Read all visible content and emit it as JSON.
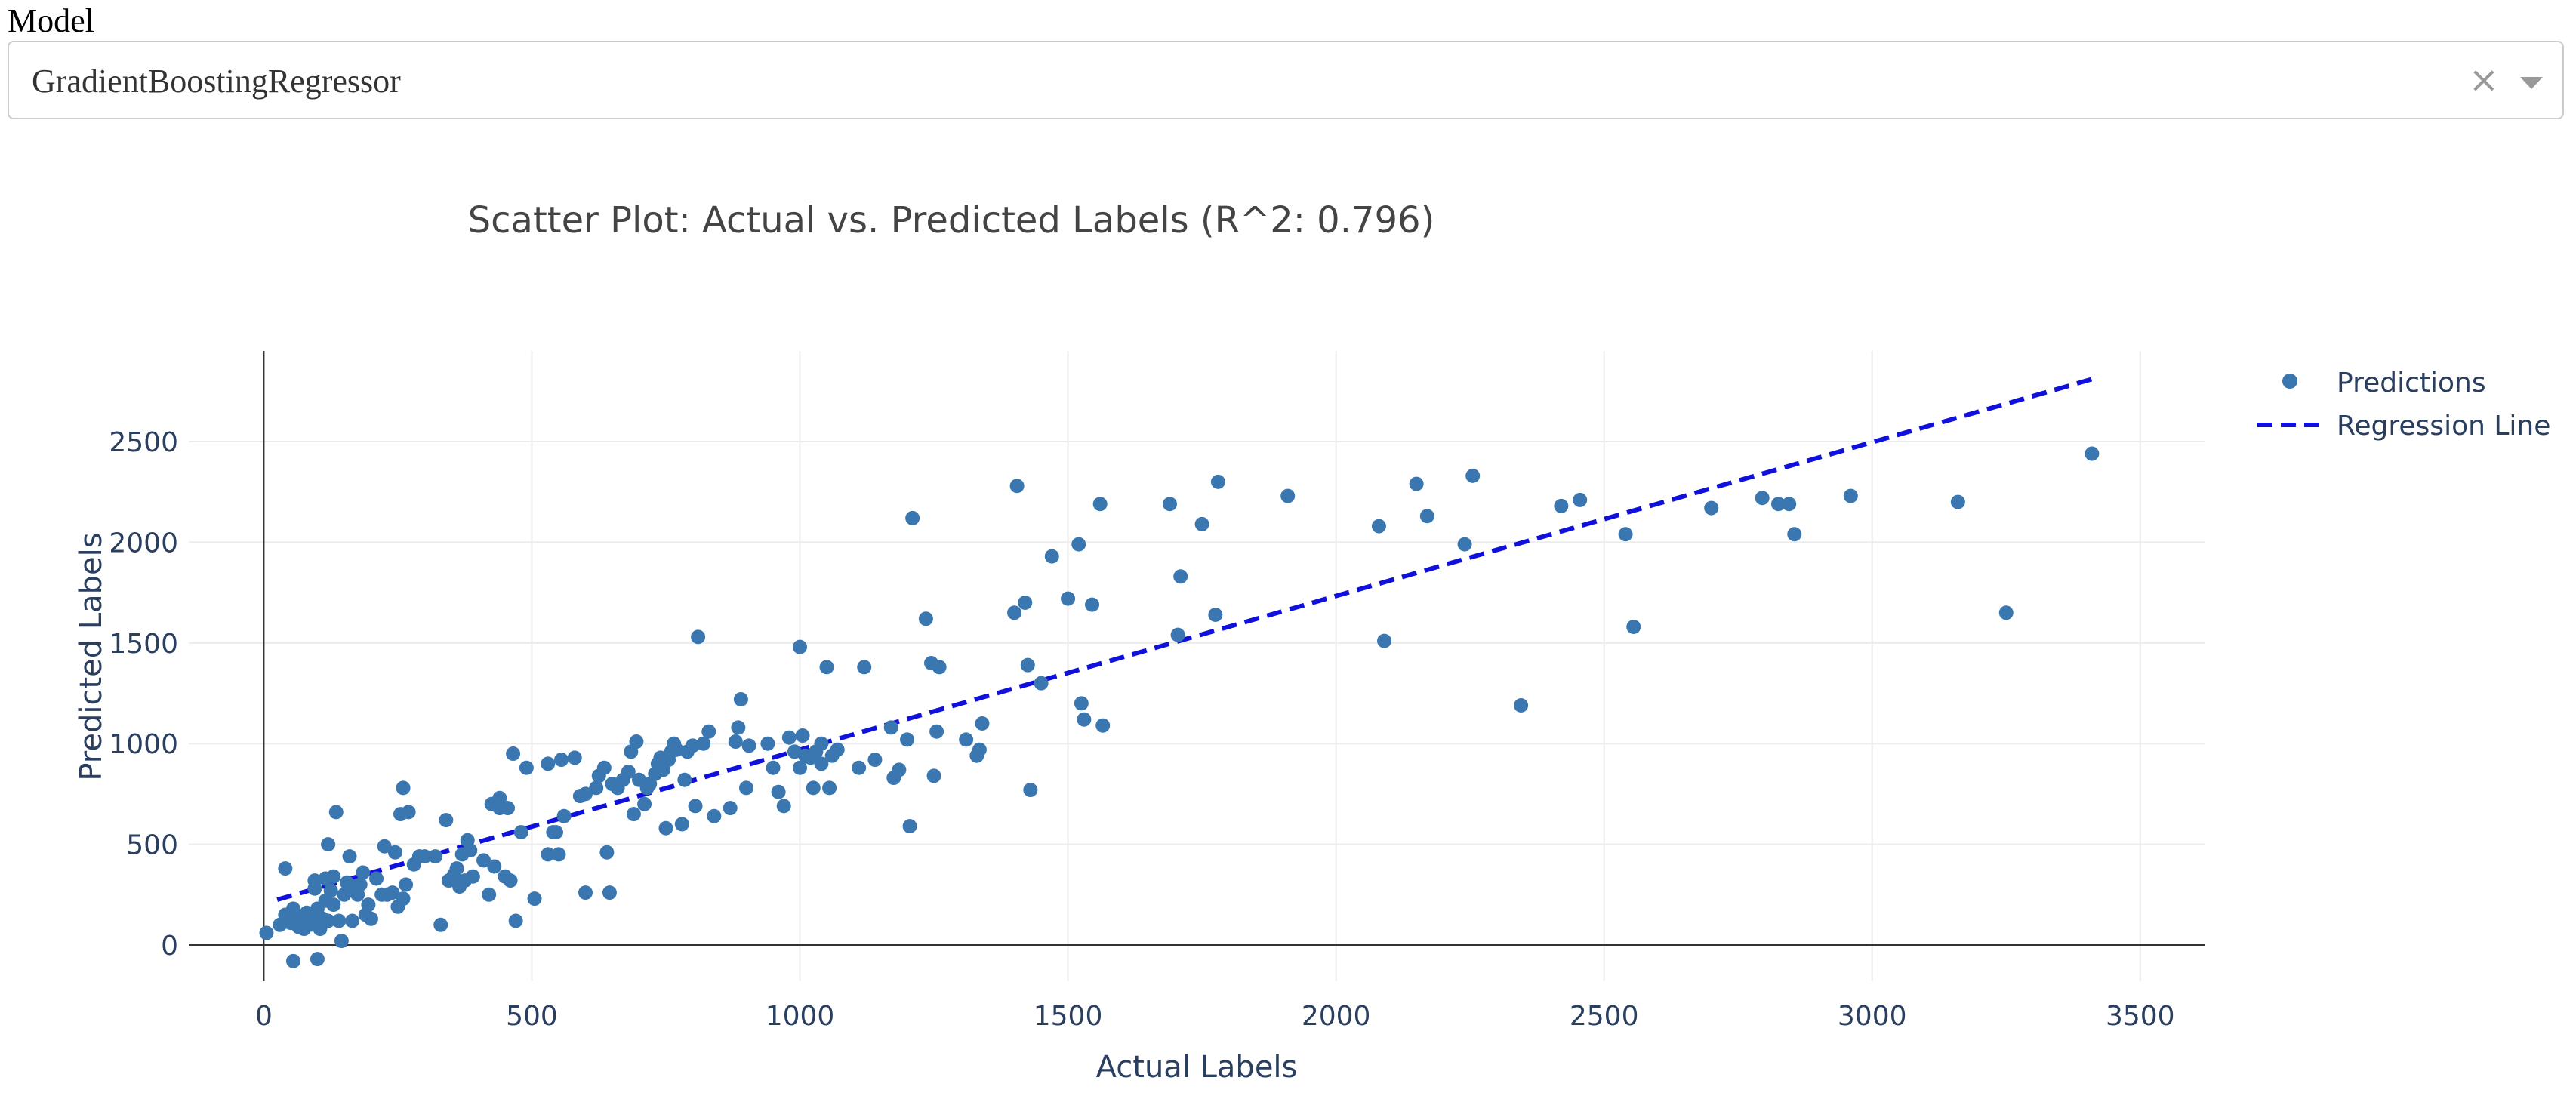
{
  "model_selector": {
    "label": "Model",
    "value": "GradientBoostingRegressor",
    "clear_glyph": "×"
  },
  "chart_data": {
    "type": "scatter",
    "title": "Scatter Plot: Actual vs. Predicted Labels  (R^2: 0.796)",
    "xlabel": "Actual Labels",
    "ylabel": "Predicted Labels",
    "xlim": [
      -140,
      3620
    ],
    "ylim": [
      -180,
      2950
    ],
    "xticks": [
      0,
      500,
      1000,
      1500,
      2000,
      2500,
      3000,
      3500
    ],
    "yticks": [
      0,
      500,
      1000,
      1500,
      2000,
      2500
    ],
    "grid": true,
    "legend_position": "top-right",
    "colors": {
      "points": "#3a77b0",
      "regression": "#1010dd",
      "grid": "#ebebeb",
      "axis": "#333333",
      "text": "#2a3f5f"
    },
    "regression_line": {
      "name": "Regression Line",
      "style": "dashed",
      "x": [
        25,
        3410
      ],
      "y": [
        225,
        2810
      ]
    },
    "series": [
      {
        "name": "Predictions",
        "points": [
          [
            5,
            60
          ],
          [
            30,
            100
          ],
          [
            40,
            150
          ],
          [
            40,
            380
          ],
          [
            50,
            110
          ],
          [
            55,
            180
          ],
          [
            55,
            -80
          ],
          [
            60,
            120
          ],
          [
            65,
            90
          ],
          [
            70,
            140
          ],
          [
            75,
            80
          ],
          [
            80,
            160
          ],
          [
            85,
            100
          ],
          [
            90,
            130
          ],
          [
            95,
            280
          ],
          [
            95,
            320
          ],
          [
            100,
            -70
          ],
          [
            100,
            180
          ],
          [
            105,
            80
          ],
          [
            110,
            130
          ],
          [
            115,
            220
          ],
          [
            115,
            330
          ],
          [
            120,
            500
          ],
          [
            120,
            120
          ],
          [
            125,
            270
          ],
          [
            130,
            200
          ],
          [
            130,
            340
          ],
          [
            135,
            660
          ],
          [
            140,
            120
          ],
          [
            145,
            20
          ],
          [
            150,
            250
          ],
          [
            155,
            310
          ],
          [
            160,
            440
          ],
          [
            165,
            120
          ],
          [
            170,
            290
          ],
          [
            175,
            250
          ],
          [
            180,
            300
          ],
          [
            185,
            360
          ],
          [
            190,
            150
          ],
          [
            195,
            200
          ],
          [
            200,
            130
          ],
          [
            210,
            330
          ],
          [
            220,
            250
          ],
          [
            225,
            490
          ],
          [
            230,
            250
          ],
          [
            240,
            260
          ],
          [
            245,
            460
          ],
          [
            250,
            190
          ],
          [
            255,
            650
          ],
          [
            260,
            780
          ],
          [
            260,
            230
          ],
          [
            265,
            300
          ],
          [
            270,
            660
          ],
          [
            280,
            400
          ],
          [
            290,
            440
          ],
          [
            300,
            440
          ],
          [
            320,
            440
          ],
          [
            330,
            100
          ],
          [
            340,
            620
          ],
          [
            345,
            320
          ],
          [
            355,
            350
          ],
          [
            360,
            380
          ],
          [
            365,
            290
          ],
          [
            370,
            450
          ],
          [
            375,
            320
          ],
          [
            380,
            520
          ],
          [
            385,
            470
          ],
          [
            390,
            340
          ],
          [
            410,
            420
          ],
          [
            420,
            250
          ],
          [
            425,
            700
          ],
          [
            430,
            390
          ],
          [
            440,
            680
          ],
          [
            440,
            730
          ],
          [
            450,
            340
          ],
          [
            455,
            680
          ],
          [
            460,
            320
          ],
          [
            465,
            950
          ],
          [
            470,
            120
          ],
          [
            480,
            560
          ],
          [
            490,
            880
          ],
          [
            505,
            230
          ],
          [
            530,
            900
          ],
          [
            530,
            450
          ],
          [
            540,
            560
          ],
          [
            545,
            560
          ],
          [
            550,
            450
          ],
          [
            555,
            920
          ],
          [
            560,
            640
          ],
          [
            580,
            930
          ],
          [
            590,
            740
          ],
          [
            600,
            260
          ],
          [
            600,
            750
          ],
          [
            620,
            780
          ],
          [
            625,
            840
          ],
          [
            635,
            880
          ],
          [
            640,
            460
          ],
          [
            645,
            260
          ],
          [
            650,
            800
          ],
          [
            660,
            780
          ],
          [
            670,
            820
          ],
          [
            680,
            860
          ],
          [
            685,
            960
          ],
          [
            690,
            650
          ],
          [
            695,
            1010
          ],
          [
            700,
            820
          ],
          [
            710,
            700
          ],
          [
            715,
            780
          ],
          [
            720,
            800
          ],
          [
            730,
            850
          ],
          [
            735,
            900
          ],
          [
            740,
            930
          ],
          [
            745,
            870
          ],
          [
            750,
            580
          ],
          [
            755,
            920
          ],
          [
            760,
            960
          ],
          [
            765,
            1000
          ],
          [
            770,
            970
          ],
          [
            780,
            600
          ],
          [
            785,
            820
          ],
          [
            790,
            960
          ],
          [
            800,
            990
          ],
          [
            805,
            690
          ],
          [
            810,
            1530
          ],
          [
            820,
            1000
          ],
          [
            830,
            1060
          ],
          [
            840,
            640
          ],
          [
            870,
            680
          ],
          [
            880,
            1010
          ],
          [
            885,
            1080
          ],
          [
            890,
            1220
          ],
          [
            900,
            780
          ],
          [
            905,
            990
          ],
          [
            940,
            1000
          ],
          [
            950,
            880
          ],
          [
            960,
            760
          ],
          [
            970,
            690
          ],
          [
            980,
            1030
          ],
          [
            990,
            960
          ],
          [
            1000,
            1480
          ],
          [
            1000,
            880
          ],
          [
            1005,
            1040
          ],
          [
            1010,
            940
          ],
          [
            1020,
            930
          ],
          [
            1025,
            780
          ],
          [
            1030,
            960
          ],
          [
            1040,
            900
          ],
          [
            1040,
            1000
          ],
          [
            1050,
            1380
          ],
          [
            1055,
            780
          ],
          [
            1060,
            940
          ],
          [
            1070,
            970
          ],
          [
            1110,
            880
          ],
          [
            1120,
            1380
          ],
          [
            1140,
            920
          ],
          [
            1170,
            1080
          ],
          [
            1175,
            830
          ],
          [
            1185,
            870
          ],
          [
            1200,
            1020
          ],
          [
            1205,
            590
          ],
          [
            1210,
            2120
          ],
          [
            1235,
            1620
          ],
          [
            1245,
            1400
          ],
          [
            1250,
            840
          ],
          [
            1255,
            1060
          ],
          [
            1260,
            1380
          ],
          [
            1310,
            1020
          ],
          [
            1330,
            940
          ],
          [
            1335,
            970
          ],
          [
            1340,
            1100
          ],
          [
            1400,
            1650
          ],
          [
            1405,
            2280
          ],
          [
            1420,
            1700
          ],
          [
            1425,
            1390
          ],
          [
            1430,
            770
          ],
          [
            1450,
            1300
          ],
          [
            1470,
            1930
          ],
          [
            1500,
            1720
          ],
          [
            1520,
            1990
          ],
          [
            1525,
            1200
          ],
          [
            1530,
            1120
          ],
          [
            1545,
            1690
          ],
          [
            1560,
            2190
          ],
          [
            1565,
            1090
          ],
          [
            1690,
            2190
          ],
          [
            1705,
            1540
          ],
          [
            1710,
            1830
          ],
          [
            1750,
            2090
          ],
          [
            1775,
            1640
          ],
          [
            1780,
            2300
          ],
          [
            1910,
            2230
          ],
          [
            2080,
            2080
          ],
          [
            2090,
            1510
          ],
          [
            2150,
            2290
          ],
          [
            2170,
            2130
          ],
          [
            2240,
            1990
          ],
          [
            2255,
            2330
          ],
          [
            2345,
            1190
          ],
          [
            2420,
            2180
          ],
          [
            2455,
            2210
          ],
          [
            2540,
            2040
          ],
          [
            2555,
            1580
          ],
          [
            2700,
            2170
          ],
          [
            2795,
            2220
          ],
          [
            2825,
            2190
          ],
          [
            2845,
            2190
          ],
          [
            2855,
            2040
          ],
          [
            2960,
            2230
          ],
          [
            3160,
            2200
          ],
          [
            3250,
            1650
          ],
          [
            3410,
            2440
          ]
        ]
      }
    ]
  }
}
